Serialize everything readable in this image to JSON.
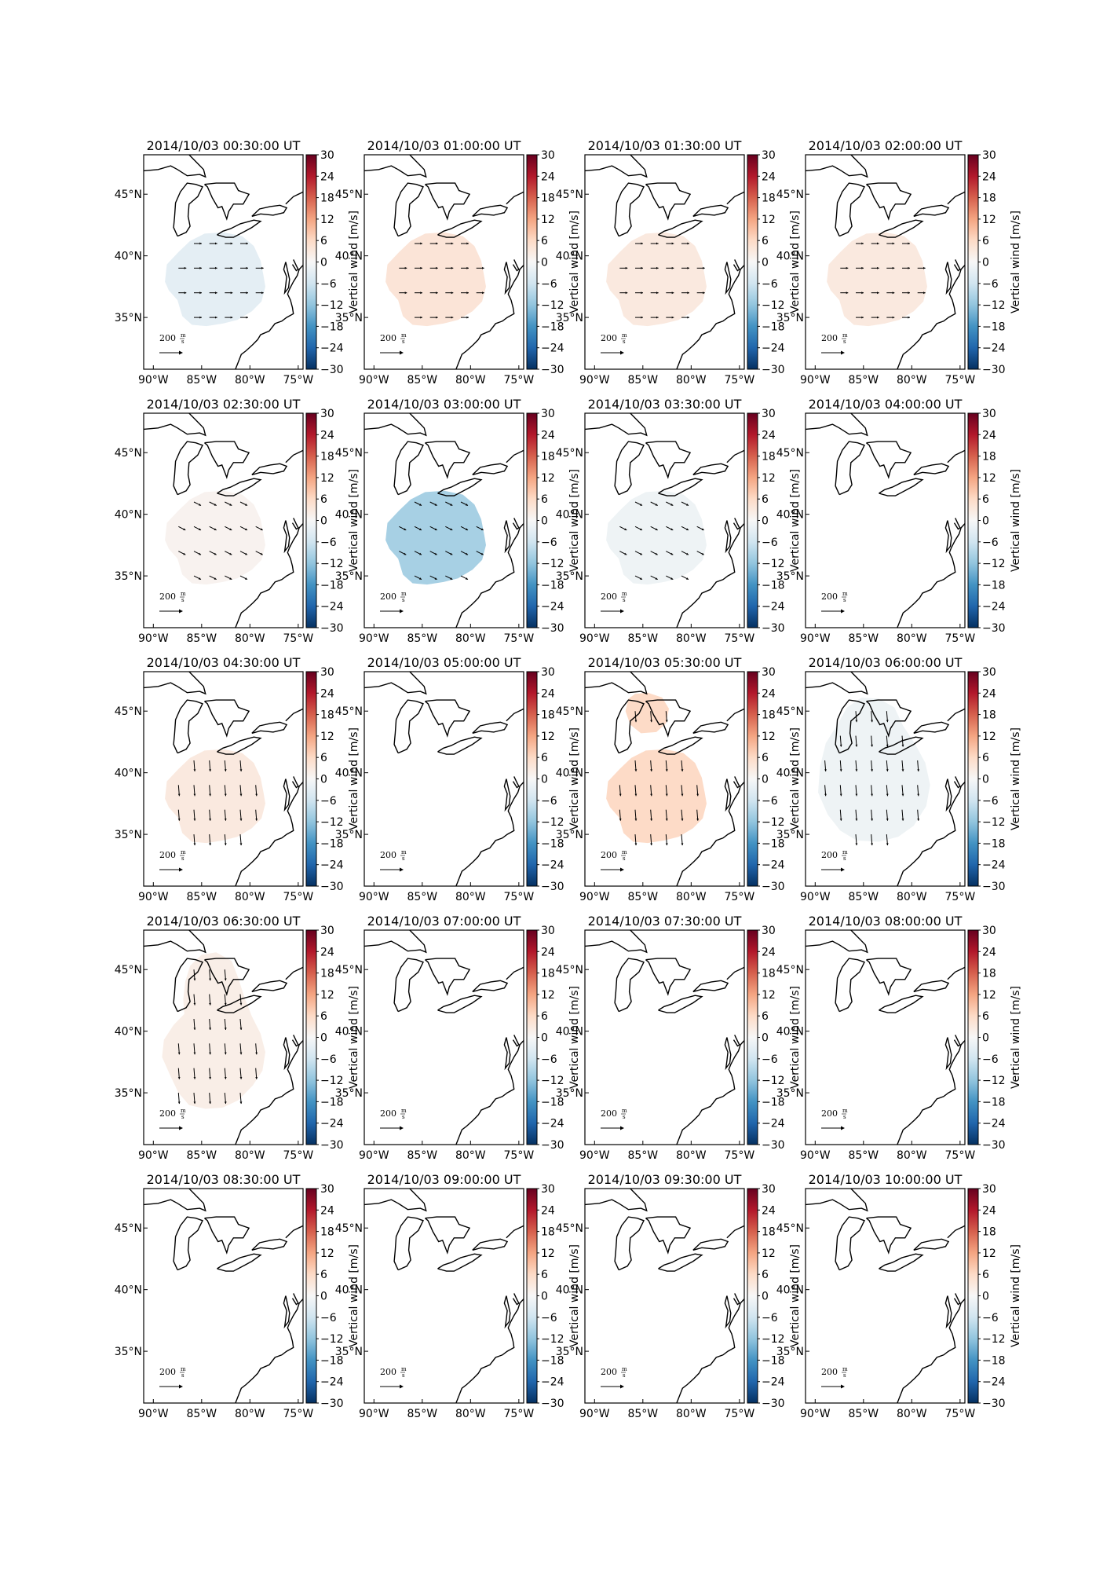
{
  "chart_data": {
    "type": "heatmap",
    "layout": {
      "rows": 5,
      "cols": 4
    },
    "x_ticks": [
      "90°W",
      "85°W",
      "80°W",
      "75°W"
    ],
    "y_ticks": [
      "45°N",
      "40°N",
      "35°N"
    ],
    "xlim": [
      -91,
      -74.5
    ],
    "ylim": [
      30.8,
      48.2
    ],
    "colorbar": {
      "label": "Vertical wind [m/s]",
      "min": -30,
      "max": 30,
      "ticks": [
        "30",
        "24",
        "18",
        "12",
        "6",
        "0",
        "−6",
        "−12",
        "−18",
        "−24",
        "−30"
      ],
      "colormap": "RdBu_r"
    },
    "quiver_key": {
      "value": "200",
      "unit_top": "m",
      "unit_bottom": "s"
    },
    "panels": [
      {
        "title": "2014/10/03 00:30:00 UT",
        "vertical_wind": -3,
        "region": "south",
        "arrow_dir": "east"
      },
      {
        "title": "2014/10/03 01:00:00 UT",
        "vertical_wind": 4,
        "region": "south",
        "arrow_dir": "east"
      },
      {
        "title": "2014/10/03 01:30:00 UT",
        "vertical_wind": 3,
        "region": "south",
        "arrow_dir": "east"
      },
      {
        "title": "2014/10/03 02:00:00 UT",
        "vertical_wind": 3,
        "region": "south",
        "arrow_dir": "east"
      },
      {
        "title": "2014/10/03 02:30:00 UT",
        "vertical_wind": 1,
        "region": "south",
        "arrow_dir": "southeast"
      },
      {
        "title": "2014/10/03 03:00:00 UT",
        "vertical_wind": -10,
        "region": "south",
        "arrow_dir": "southeast"
      },
      {
        "title": "2014/10/03 03:30:00 UT",
        "vertical_wind": -1.5,
        "region": "south",
        "arrow_dir": "southeast"
      },
      {
        "title": "2014/10/03 04:00:00 UT",
        "vertical_wind": null,
        "region": "none",
        "arrow_dir": "none"
      },
      {
        "title": "2014/10/03 04:30:00 UT",
        "vertical_wind": 3,
        "region": "south",
        "arrow_dir": "south"
      },
      {
        "title": "2014/10/03 05:00:00 UT",
        "vertical_wind": null,
        "region": "none",
        "arrow_dir": "none"
      },
      {
        "title": "2014/10/03 05:30:00 UT",
        "vertical_wind": 6,
        "region": "two",
        "arrow_dir": "south"
      },
      {
        "title": "2014/10/03 06:00:00 UT",
        "vertical_wind": -1.5,
        "region": "wide",
        "arrow_dir": "south"
      },
      {
        "title": "2014/10/03 06:30:00 UT",
        "vertical_wind": 2,
        "region": "tall",
        "arrow_dir": "south"
      },
      {
        "title": "2014/10/03 07:00:00 UT",
        "vertical_wind": null,
        "region": "none",
        "arrow_dir": "none"
      },
      {
        "title": "2014/10/03 07:30:00 UT",
        "vertical_wind": null,
        "region": "none",
        "arrow_dir": "none"
      },
      {
        "title": "2014/10/03 08:00:00 UT",
        "vertical_wind": null,
        "region": "none",
        "arrow_dir": "none"
      },
      {
        "title": "2014/10/03 08:30:00 UT",
        "vertical_wind": null,
        "region": "none",
        "arrow_dir": "none"
      },
      {
        "title": "2014/10/03 09:00:00 UT",
        "vertical_wind": null,
        "region": "none",
        "arrow_dir": "none"
      },
      {
        "title": "2014/10/03 09:30:00 UT",
        "vertical_wind": null,
        "region": "none",
        "arrow_dir": "none"
      },
      {
        "title": "2014/10/03 10:00:00 UT",
        "vertical_wind": null,
        "region": "none",
        "arrow_dir": "none"
      }
    ]
  }
}
